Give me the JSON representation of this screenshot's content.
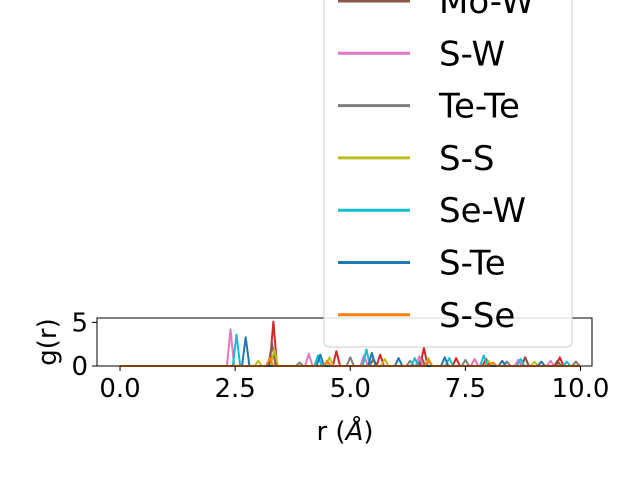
{
  "chart_data": {
    "type": "line",
    "xlabel_text": "r (",
    "xlabel_unit": "Å",
    "xlabel_close": ")",
    "ylabel": "g(r)",
    "xlim": [
      -0.5,
      10.25
    ],
    "ylim": [
      0,
      5.5
    ],
    "x_ticks": [
      "0.0",
      "2.5",
      "5.0",
      "7.5",
      "10.0"
    ],
    "x_tick_values": [
      0.0,
      2.5,
      5.0,
      7.5,
      10.0
    ],
    "y_ticks": [
      "0",
      "5"
    ],
    "y_tick_values": [
      0,
      5
    ],
    "grid": false,
    "legend_position": "upper-right",
    "legend": [
      {
        "name": "Mo-W",
        "color": "#8c564b"
      },
      {
        "name": "S-W",
        "color": "#e377c2"
      },
      {
        "name": "Te-Te",
        "color": "#7f7f7f"
      },
      {
        "name": "S-S",
        "color": "#bcbd22"
      },
      {
        "name": "Se-W",
        "color": "#17becf"
      },
      {
        "name": "S-Te",
        "color": "#1f77b4"
      },
      {
        "name": "S-Se",
        "color": "#ff7f0e"
      }
    ],
    "series": [
      {
        "name": "",
        "color": "#d62728",
        "peaks": [
          [
            3.33,
            5.1
          ],
          [
            4.7,
            1.7
          ],
          [
            5.65,
            1.3
          ],
          [
            6.6,
            2.1
          ],
          [
            7.3,
            0.9
          ],
          [
            7.95,
            0.8
          ],
          [
            8.8,
            1.0
          ],
          [
            9.55,
            1.0
          ],
          [
            9.9,
            0.5
          ]
        ]
      },
      {
        "name": "Mo-W",
        "color": "#8c564b",
        "peaks": [
          [
            3.3,
            2.6
          ],
          [
            5.5,
            0.8
          ],
          [
            6.55,
            1.0
          ],
          [
            8.8,
            1.0
          ],
          [
            9.5,
            0.6
          ]
        ]
      },
      {
        "name": "S-W",
        "color": "#e377c2",
        "peaks": [
          [
            2.4,
            4.2
          ],
          [
            4.1,
            1.4
          ],
          [
            5.3,
            1.2
          ],
          [
            6.5,
            1.1
          ],
          [
            7.7,
            0.8
          ],
          [
            8.65,
            0.7
          ],
          [
            9.35,
            0.6
          ]
        ]
      },
      {
        "name": "Te-Te",
        "color": "#7f7f7f",
        "peaks": [
          [
            3.9,
            0.4
          ],
          [
            5.0,
            1.0
          ],
          [
            6.3,
            0.6
          ],
          [
            7.5,
            0.7
          ],
          [
            8.4,
            0.5
          ],
          [
            9.9,
            0.5
          ]
        ]
      },
      {
        "name": "S-S",
        "color": "#bcbd22",
        "peaks": [
          [
            3.0,
            0.6
          ],
          [
            3.35,
            1.9
          ],
          [
            4.55,
            1.0
          ],
          [
            5.75,
            0.8
          ],
          [
            6.7,
            0.9
          ],
          [
            8.0,
            0.6
          ],
          [
            9.0,
            0.5
          ]
        ]
      },
      {
        "name": "Se-W",
        "color": "#17becf",
        "peaks": [
          [
            2.53,
            3.6
          ],
          [
            4.3,
            1.2
          ],
          [
            5.35,
            1.9
          ],
          [
            6.4,
            0.9
          ],
          [
            7.15,
            0.9
          ],
          [
            7.9,
            1.2
          ],
          [
            8.7,
            0.8
          ],
          [
            9.7,
            0.5
          ]
        ]
      },
      {
        "name": "S-Te",
        "color": "#1f77b4",
        "peaks": [
          [
            2.73,
            3.3
          ],
          [
            4.35,
            1.3
          ],
          [
            5.47,
            1.5
          ],
          [
            6.05,
            0.9
          ],
          [
            7.05,
            1.0
          ],
          [
            8.3,
            0.6
          ],
          [
            9.15,
            0.5
          ]
        ]
      },
      {
        "name": "S-Se",
        "color": "#ff7f0e",
        "peaks": [
          [
            3.25,
            0.9
          ],
          [
            4.5,
            0.6
          ],
          [
            6.7,
            0.6
          ],
          [
            8.1,
            0.4
          ]
        ]
      }
    ]
  }
}
